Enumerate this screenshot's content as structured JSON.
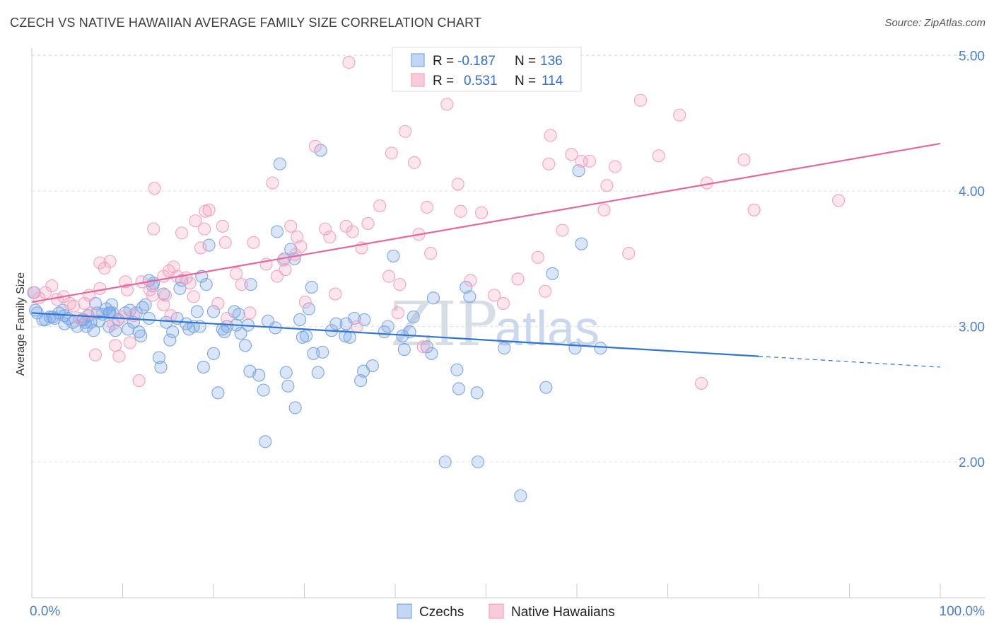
{
  "header": {
    "title": "CZECH VS NATIVE HAWAIIAN AVERAGE FAMILY SIZE CORRELATION CHART",
    "source": "Source: ZipAtlas.com"
  },
  "watermark": {
    "part1": "ZIP",
    "part2": "atlas"
  },
  "chart_data": {
    "type": "scatter",
    "title": "CZECH VS NATIVE HAWAIIAN AVERAGE FAMILY SIZE CORRELATION CHART",
    "xlabel": "",
    "ylabel": "Average Family Size",
    "xlim": [
      0,
      100
    ],
    "ylim": [
      1.0,
      5.2
    ],
    "x_tick_labels": [
      "0.0%",
      "100.0%"
    ],
    "y_ticks": [
      2.0,
      3.0,
      4.0,
      5.0
    ],
    "y_tick_labels": [
      "2.00",
      "3.00",
      "4.00",
      "5.00"
    ],
    "grid": "horizontal dashed",
    "legend_position": "top-center",
    "stats": [
      {
        "r_label": "R =",
        "r": "-0.187",
        "n_label": "N =",
        "n": "136"
      },
      {
        "r_label": "R =",
        "r": "0.531",
        "n_label": "N =",
        "n": "114"
      }
    ],
    "series": [
      {
        "name": "Czechs",
        "color": "#7aa7e6",
        "line_color": "#2f75d6",
        "trend": {
          "x0": 0,
          "y0": 3.1,
          "x1": 80,
          "y1": 2.78,
          "dash_to_x": 100,
          "dash_to_y": 2.7
        },
        "points": [
          [
            0.2,
            3.25
          ],
          [
            0.4,
            3.12
          ],
          [
            0.6,
            3.1
          ],
          [
            1.2,
            3.05
          ],
          [
            1.5,
            3.05
          ],
          [
            2,
            3.07
          ],
          [
            2.3,
            3.07
          ],
          [
            2.5,
            3.06
          ],
          [
            3,
            3.1
          ],
          [
            3.4,
            3.12
          ],
          [
            3.6,
            3.08
          ],
          [
            3.6,
            3.02
          ],
          [
            4,
            3.06
          ],
          [
            4.5,
            3.03
          ],
          [
            5,
            3.0
          ],
          [
            5.5,
            3.05
          ],
          [
            5.7,
            3.05
          ],
          [
            5.9,
            3.03
          ],
          [
            6,
            3.0
          ],
          [
            6.2,
            3.08
          ],
          [
            6.5,
            3.03
          ],
          [
            6.8,
            2.97
          ],
          [
            7,
            3.17
          ],
          [
            7.2,
            3.1
          ],
          [
            7.4,
            3.04
          ],
          [
            7.8,
            3.09
          ],
          [
            8.2,
            3.13
          ],
          [
            8.5,
            3.0
          ],
          [
            8.5,
            3.1
          ],
          [
            8.6,
            3.1
          ],
          [
            8.8,
            3.16
          ],
          [
            8.9,
            3.1
          ],
          [
            9.2,
            2.97
          ],
          [
            9.5,
            3.05
          ],
          [
            10.3,
            3.1
          ],
          [
            10.6,
            2.98
          ],
          [
            10.8,
            3.12
          ],
          [
            11.2,
            3.03
          ],
          [
            11.5,
            3.1
          ],
          [
            11.8,
            2.96
          ],
          [
            12,
            2.93
          ],
          [
            12.2,
            3.14
          ],
          [
            12.5,
            3.16
          ],
          [
            12.9,
            3.06
          ],
          [
            12.9,
            3.34
          ],
          [
            13.3,
            3.3
          ],
          [
            13.4,
            3.32
          ],
          [
            14,
            2.77
          ],
          [
            14.2,
            2.7
          ],
          [
            14.5,
            3.24
          ],
          [
            14.8,
            3.03
          ],
          [
            15.2,
            2.9
          ],
          [
            15.5,
            2.96
          ],
          [
            16,
            3.06
          ],
          [
            16.3,
            3.28
          ],
          [
            16.5,
            3.34
          ],
          [
            17,
            3.02
          ],
          [
            17.3,
            2.98
          ],
          [
            17.8,
            3.0
          ],
          [
            18.2,
            3.11
          ],
          [
            18.5,
            3.0
          ],
          [
            18.7,
            3.37
          ],
          [
            18.9,
            2.7
          ],
          [
            19.2,
            3.31
          ],
          [
            19.5,
            3.6
          ],
          [
            20,
            2.8
          ],
          [
            20,
            3.11
          ],
          [
            20.5,
            2.51
          ],
          [
            21,
            2.98
          ],
          [
            21.5,
            3.0
          ],
          [
            22.3,
            3.11
          ],
          [
            22.5,
            3.01
          ],
          [
            22.8,
            3.09
          ],
          [
            23,
            2.95
          ],
          [
            23.5,
            2.86
          ],
          [
            23.8,
            3.01
          ],
          [
            24,
            2.67
          ],
          [
            24.1,
            3.31
          ],
          [
            25,
            2.64
          ],
          [
            25.5,
            2.53
          ],
          [
            25.7,
            2.15
          ],
          [
            26,
            3.04
          ],
          [
            27,
            3.7
          ],
          [
            27.3,
            4.2
          ],
          [
            27.8,
            3.5
          ],
          [
            28,
            2.66
          ],
          [
            28.2,
            2.56
          ],
          [
            28.5,
            3.57
          ],
          [
            28.9,
            3.5
          ],
          [
            29,
            2.4
          ],
          [
            29.5,
            3.05
          ],
          [
            29.8,
            2.92
          ],
          [
            30.2,
            2.93
          ],
          [
            30.5,
            3.13
          ],
          [
            30.8,
            3.29
          ],
          [
            31,
            2.8
          ],
          [
            31.5,
            2.66
          ],
          [
            31.8,
            4.3
          ],
          [
            32,
            2.81
          ],
          [
            33.5,
            3.02
          ],
          [
            34.5,
            2.93
          ],
          [
            34.6,
            3.02
          ],
          [
            35,
            2.92
          ],
          [
            35.5,
            3.06
          ],
          [
            36.2,
            2.6
          ],
          [
            36.5,
            2.67
          ],
          [
            36.6,
            3.05
          ],
          [
            37.5,
            2.71
          ],
          [
            38.8,
            2.96
          ],
          [
            39.2,
            3.0
          ],
          [
            39.8,
            3.52
          ],
          [
            40.8,
            2.93
          ],
          [
            41,
            2.83
          ],
          [
            41.6,
            2.96
          ],
          [
            42,
            3.07
          ],
          [
            43.5,
            2.85
          ],
          [
            44,
            2.8
          ],
          [
            44.2,
            3.21
          ],
          [
            45.5,
            2.0
          ],
          [
            46.8,
            2.68
          ],
          [
            47,
            2.54
          ],
          [
            47.8,
            3.29
          ],
          [
            48.2,
            3.22
          ],
          [
            49,
            2.51
          ],
          [
            49.1,
            2.0
          ],
          [
            52,
            2.84
          ],
          [
            53.8,
            1.75
          ],
          [
            56.6,
            2.55
          ],
          [
            57.3,
            3.39
          ],
          [
            59.8,
            2.84
          ],
          [
            60.2,
            4.15
          ],
          [
            60.5,
            3.61
          ],
          [
            62.6,
            2.84
          ],
          [
            26.8,
            2.99
          ],
          [
            21.2,
            2.96
          ],
          [
            33,
            2.97
          ]
        ]
      },
      {
        "name": "Native Hawaiians",
        "color": "#f4a3bd",
        "line_color": "#e8679a",
        "trend": {
          "x0": 0,
          "y0": 3.18,
          "x1": 100,
          "y1": 4.35
        },
        "points": [
          [
            0.3,
            3.25
          ],
          [
            0.8,
            3.21
          ],
          [
            1.5,
            3.25
          ],
          [
            2.2,
            3.3
          ],
          [
            2.8,
            3.2
          ],
          [
            3.5,
            3.22
          ],
          [
            4.2,
            3.17
          ],
          [
            4.6,
            3.15
          ],
          [
            5.2,
            3.06
          ],
          [
            5.8,
            3.17
          ],
          [
            6.3,
            3.23
          ],
          [
            6.5,
            3.1
          ],
          [
            7,
            2.79
          ],
          [
            7.5,
            3.28
          ],
          [
            7.5,
            3.47
          ],
          [
            8,
            3.43
          ],
          [
            8.6,
            3.48
          ],
          [
            9,
            3.02
          ],
          [
            9.2,
            2.86
          ],
          [
            9.6,
            2.78
          ],
          [
            9.9,
            3.07
          ],
          [
            10.3,
            3.33
          ],
          [
            10.5,
            3.27
          ],
          [
            10.8,
            2.88
          ],
          [
            11.2,
            3.08
          ],
          [
            11.8,
            2.6
          ],
          [
            12.1,
            3.33
          ],
          [
            13,
            3.27
          ],
          [
            13.3,
            3.23
          ],
          [
            13.4,
            3.72
          ],
          [
            13.5,
            4.02
          ],
          [
            14.5,
            3.16
          ],
          [
            14.5,
            3.37
          ],
          [
            14.7,
            3.23
          ],
          [
            15.1,
            3.41
          ],
          [
            15.3,
            3.08
          ],
          [
            15.6,
            3.44
          ],
          [
            16,
            3.37
          ],
          [
            16.5,
            3.69
          ],
          [
            17,
            3.36
          ],
          [
            17.4,
            3.32
          ],
          [
            17.8,
            3.22
          ],
          [
            18,
            3.78
          ],
          [
            18.6,
            3.58
          ],
          [
            19,
            3.72
          ],
          [
            19.5,
            3.86
          ],
          [
            20.5,
            3.17
          ],
          [
            21,
            3.74
          ],
          [
            21.3,
            3.62
          ],
          [
            21.5,
            3.06
          ],
          [
            22.5,
            3.39
          ],
          [
            23.1,
            3.31
          ],
          [
            24,
            3.1
          ],
          [
            24.4,
            3.62
          ],
          [
            25.8,
            3.46
          ],
          [
            26.5,
            4.06
          ],
          [
            27,
            3.37
          ],
          [
            27.7,
            3.49
          ],
          [
            27.9,
            3.42
          ],
          [
            28.5,
            3.74
          ],
          [
            29,
            3.53
          ],
          [
            29.2,
            3.66
          ],
          [
            29.6,
            3.59
          ],
          [
            30.1,
            3.18
          ],
          [
            31.2,
            4.33
          ],
          [
            32.3,
            3.72
          ],
          [
            32.8,
            3.66
          ],
          [
            33.4,
            3.24
          ],
          [
            34.6,
            3.74
          ],
          [
            35.3,
            3.7
          ],
          [
            35.8,
            3.0
          ],
          [
            36.3,
            3.58
          ],
          [
            37,
            3.76
          ],
          [
            38.3,
            3.89
          ],
          [
            39.3,
            3.37
          ],
          [
            39.6,
            4.28
          ],
          [
            40.3,
            3.1
          ],
          [
            40.5,
            3.31
          ],
          [
            41.1,
            4.44
          ],
          [
            42.1,
            4.21
          ],
          [
            42.6,
            3.68
          ],
          [
            43.1,
            2.85
          ],
          [
            43.5,
            3.88
          ],
          [
            43.9,
            3.54
          ],
          [
            45.7,
            4.64
          ],
          [
            46.9,
            4.05
          ],
          [
            47.2,
            3.85
          ],
          [
            48.3,
            3.34
          ],
          [
            49.5,
            3.84
          ],
          [
            50.9,
            3.23
          ],
          [
            51.9,
            3.17
          ],
          [
            53.5,
            3.35
          ],
          [
            55.7,
            3.51
          ],
          [
            56.5,
            3.26
          ],
          [
            56.9,
            4.2
          ],
          [
            57.1,
            4.41
          ],
          [
            58.4,
            3.71
          ],
          [
            59.4,
            4.27
          ],
          [
            60.5,
            4.22
          ],
          [
            61.4,
            4.22
          ],
          [
            63,
            3.86
          ],
          [
            63.3,
            4.04
          ],
          [
            64.2,
            4.18
          ],
          [
            65.7,
            3.54
          ],
          [
            67,
            4.67
          ],
          [
            69,
            4.26
          ],
          [
            71.3,
            4.56
          ],
          [
            73.7,
            2.58
          ],
          [
            74.3,
            4.06
          ],
          [
            78.4,
            4.23
          ],
          [
            79.5,
            3.86
          ],
          [
            88.8,
            3.93
          ],
          [
            34.9,
            4.95
          ],
          [
            19.1,
            3.85
          ]
        ]
      }
    ]
  },
  "legend": {
    "items": [
      {
        "label": "Czechs",
        "color": "#7aa7e6"
      },
      {
        "label": "Native Hawaiians",
        "color": "#f4a3bd"
      }
    ]
  }
}
